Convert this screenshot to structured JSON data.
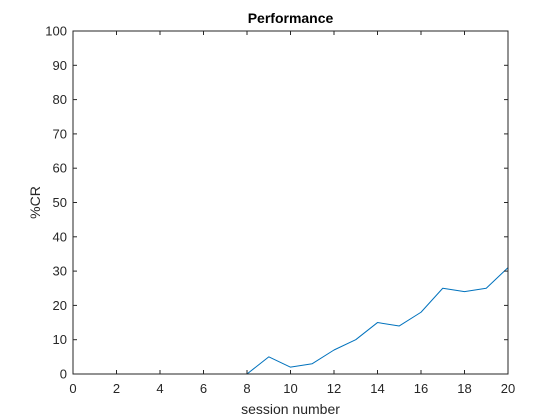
{
  "chart_data": {
    "type": "line",
    "title": "Performance",
    "xlabel": "session number",
    "ylabel": "%CR",
    "xlim": [
      0,
      20
    ],
    "ylim": [
      0,
      100
    ],
    "xticks": [
      0,
      2,
      4,
      6,
      8,
      10,
      12,
      14,
      16,
      18,
      20
    ],
    "yticks": [
      0,
      10,
      20,
      30,
      40,
      50,
      60,
      70,
      80,
      90,
      100
    ],
    "grid": false,
    "series": [
      {
        "color": "#0072bd",
        "x": [
          1,
          2,
          3,
          4,
          5,
          6,
          7,
          8,
          9,
          10,
          11,
          12,
          13,
          14,
          15,
          16,
          17,
          18,
          19,
          20
        ],
        "y": [
          0,
          0,
          0,
          0,
          0,
          0,
          0,
          0,
          5,
          2,
          3,
          7,
          10,
          15,
          14,
          18,
          25,
          24,
          25,
          31
        ]
      }
    ]
  }
}
